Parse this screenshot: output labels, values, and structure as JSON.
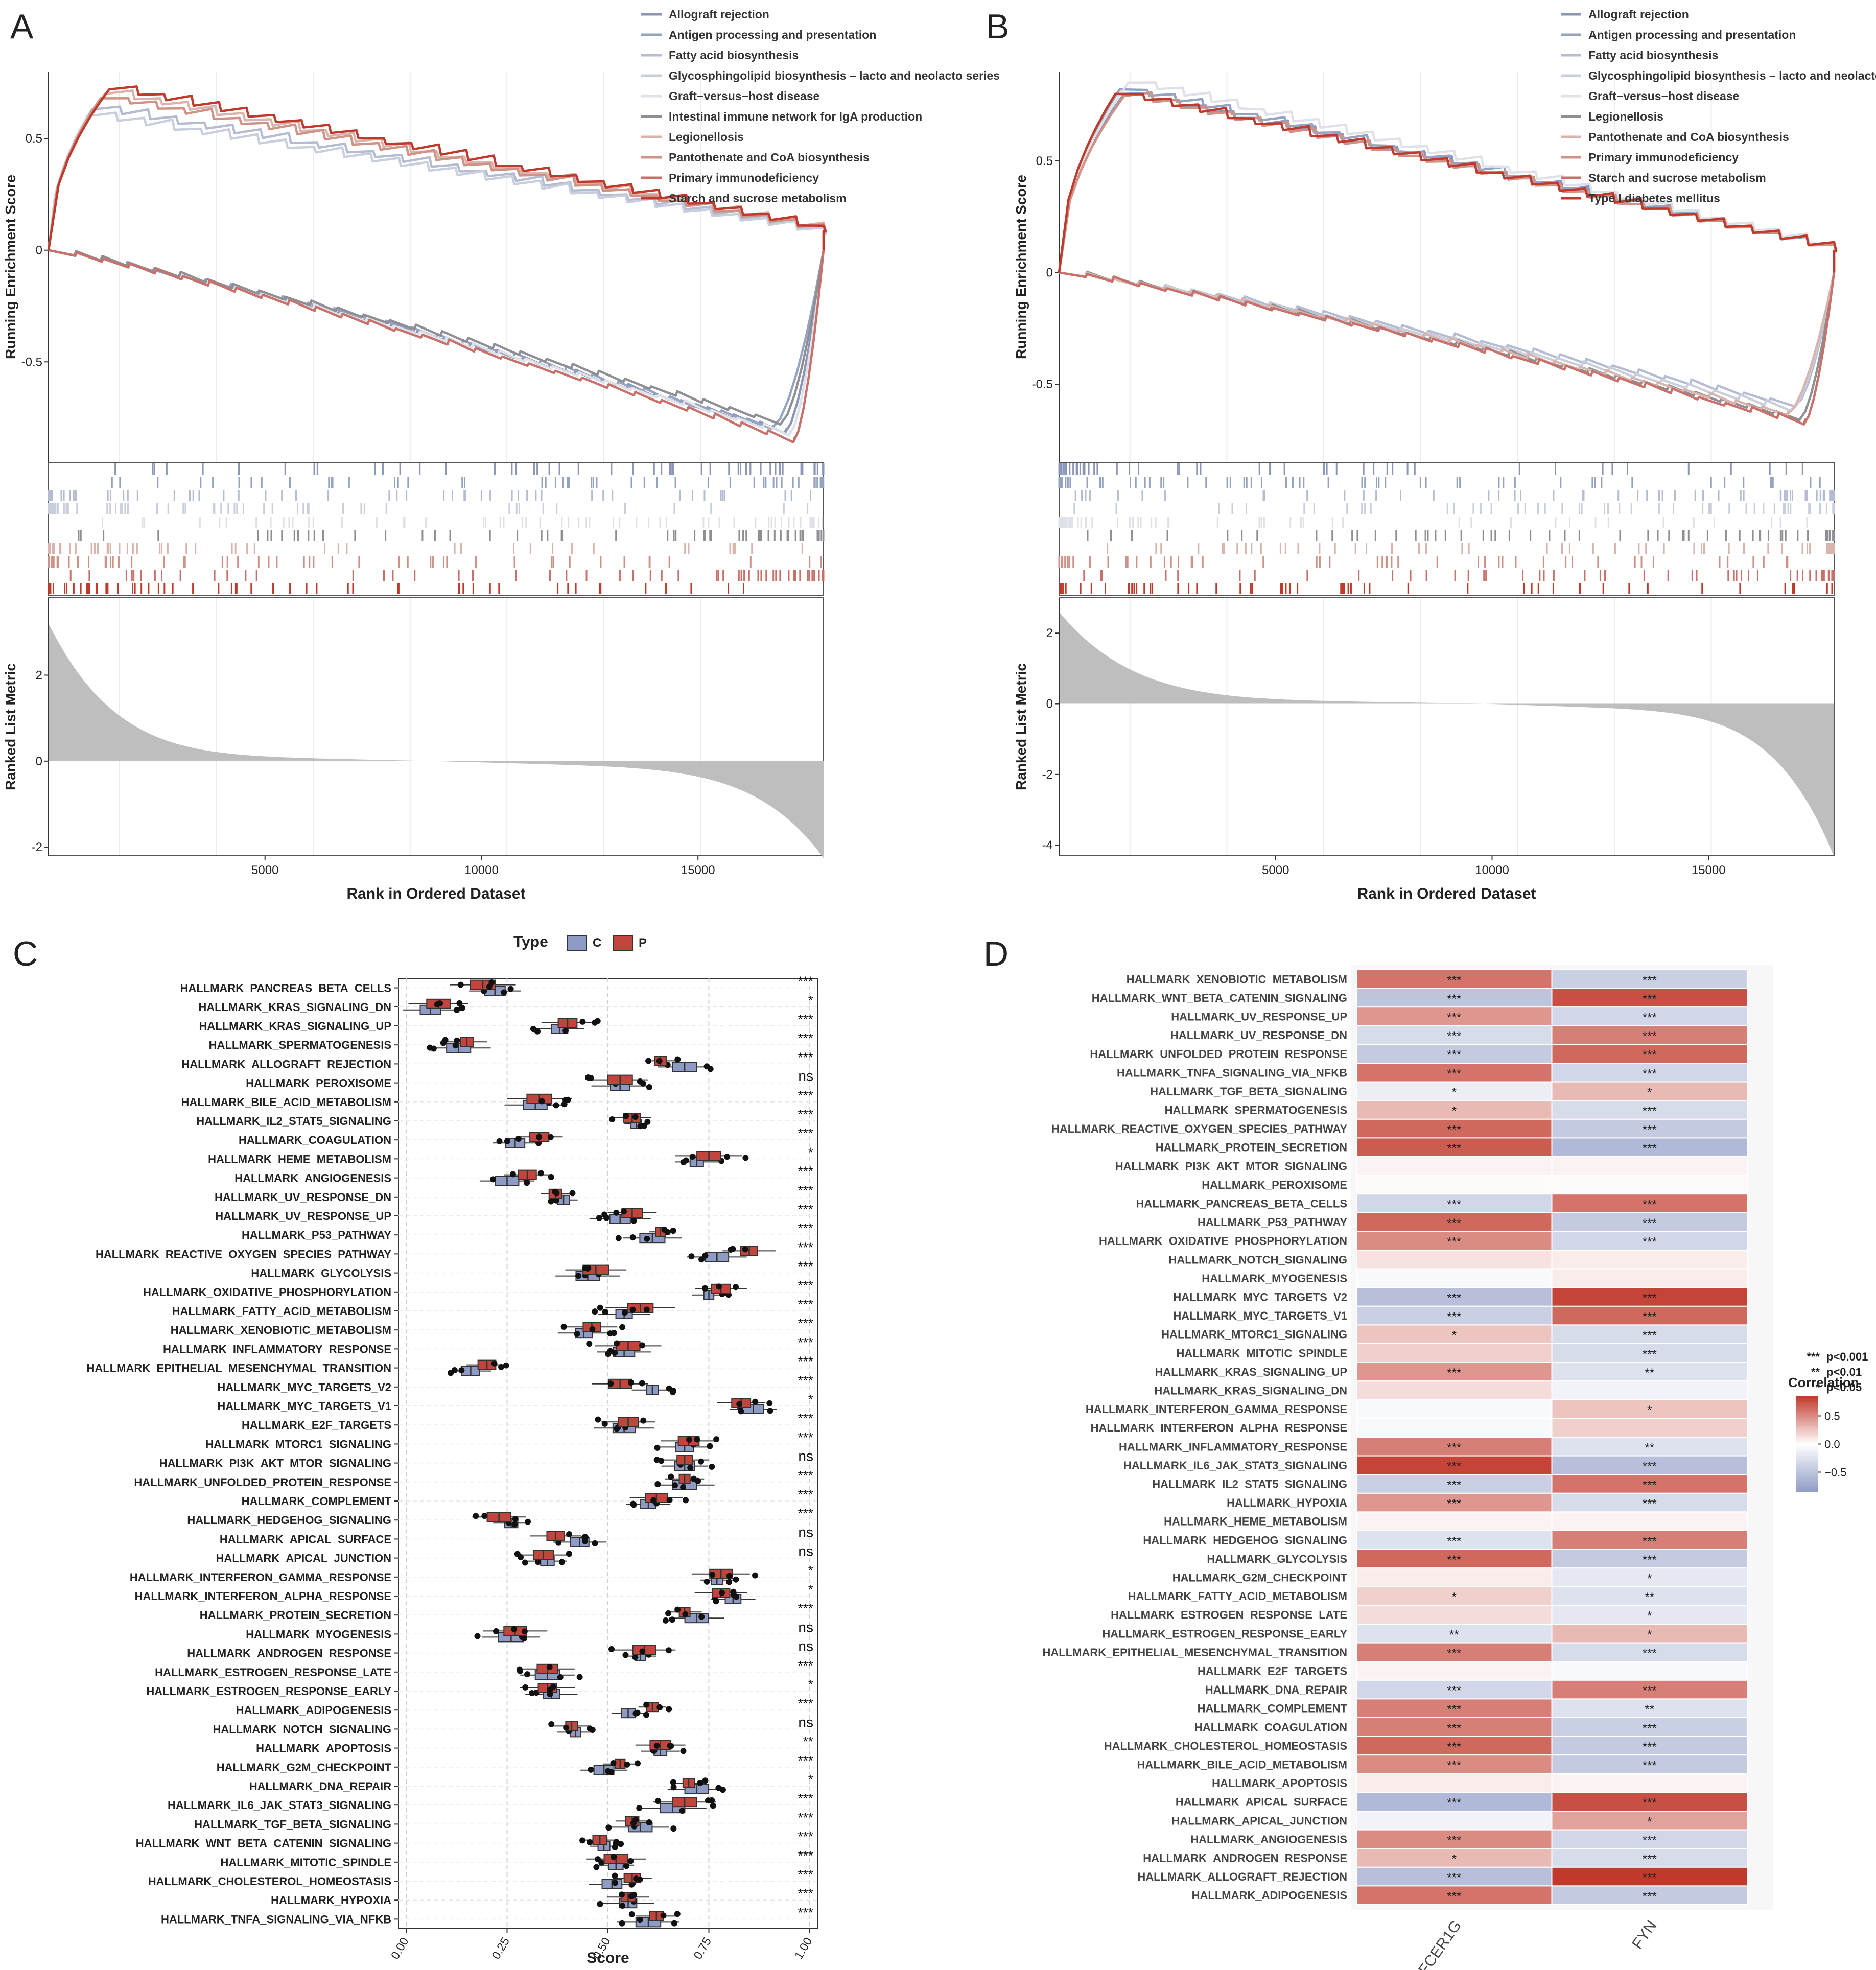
{
  "figure": {
    "panel_labels": [
      "A",
      "B",
      "C",
      "D"
    ],
    "colors": {
      "gsea_palette": [
        "#8a95b8",
        "#95a3c3",
        "#b3bcd2",
        "#c9cedd",
        "#dfe1e8",
        "#8e8e94",
        "#d9b4ac",
        "#cf9287",
        "#c9706a",
        "#c0392b"
      ],
      "box_C": "#8e9bc4",
      "box_P": "#c0463d",
      "heat_low": "#8f9cc6",
      "heat_mid": "#ffffff",
      "heat_high": "#c0392b",
      "hist_fill": "#bebebe"
    }
  },
  "chart_data": [
    {
      "panel": "A",
      "type": "line",
      "title": "",
      "ylabel_top": "Running Enrichment Score",
      "ylabel_bottom": "Ranked List Metric",
      "xlabel": "Rank in Ordered Dataset",
      "xlim": [
        0,
        17900
      ],
      "xticks": [
        5000,
        10000,
        15000
      ],
      "ylim_es": [
        -0.95,
        0.8
      ],
      "yticks_es": [
        0.5,
        0.0,
        -0.5
      ],
      "ylim_metric": [
        -2.2,
        3.8
      ],
      "yticks_metric": [
        2,
        0,
        -2
      ],
      "legend_position": "top-right",
      "metric_curve": {
        "start": 3.0,
        "end": -2.0,
        "zero_at": 0.5
      },
      "series": [
        {
          "name": "Allograft rejection",
          "direction": "down",
          "peak_x": 17000,
          "peak_es": -0.82
        },
        {
          "name": "Antigen processing and presentation",
          "direction": "down",
          "peak_x": 16700,
          "peak_es": -0.8
        },
        {
          "name": "Fatty acid biosynthesis",
          "direction": "up",
          "peak_x": 1000,
          "peak_es": 0.63
        },
        {
          "name": "Glycosphingolipid biosynthesis – lacto and neolacto series",
          "direction": "up",
          "peak_x": 900,
          "peak_es": 0.6
        },
        {
          "name": "Graft−versus−host disease",
          "direction": "down",
          "peak_x": 17100,
          "peak_es": -0.83
        },
        {
          "name": "Intestinal immune network for IgA production",
          "direction": "down",
          "peak_x": 16900,
          "peak_es": -0.78
        },
        {
          "name": "Legionellosis",
          "direction": "up",
          "peak_x": 1300,
          "peak_es": 0.7
        },
        {
          "name": "Pantothenate and CoA biosynthesis",
          "direction": "up",
          "peak_x": 1200,
          "peak_es": 0.68
        },
        {
          "name": "Primary immunodeficiency",
          "direction": "down",
          "peak_x": 17200,
          "peak_es": -0.86
        },
        {
          "name": "Starch and sucrose metabolism",
          "direction": "up",
          "peak_x": 1400,
          "peak_es": 0.72
        }
      ]
    },
    {
      "panel": "B",
      "type": "line",
      "title": "",
      "ylabel_top": "Running Enrichment Score",
      "ylabel_bottom": "Ranked List Metric",
      "xlabel": "Rank in Ordered Dataset",
      "xlim": [
        0,
        17900
      ],
      "xticks": [
        5000,
        10000,
        15000
      ],
      "ylim_es": [
        -0.85,
        0.9
      ],
      "yticks_es": [
        0.5,
        0.0,
        -0.5
      ],
      "ylim_metric": [
        -4.3,
        3.0
      ],
      "yticks_metric": [
        2,
        0,
        -2,
        -4
      ],
      "legend_position": "top-right",
      "metric_curve": {
        "start": 2.4,
        "end": -4.0,
        "zero_at": 0.55
      },
      "series": [
        {
          "name": "Allograft rejection",
          "direction": "up",
          "peak_x": 1500,
          "peak_es": 0.8
        },
        {
          "name": "Antigen processing and presentation",
          "direction": "up",
          "peak_x": 1400,
          "peak_es": 0.82
        },
        {
          "name": "Fatty acid biosynthesis",
          "direction": "down",
          "peak_x": 17000,
          "peak_es": -0.6
        },
        {
          "name": "Glycosphingolipid biosynthesis – lacto and neolacto series",
          "direction": "down",
          "peak_x": 16900,
          "peak_es": -0.62
        },
        {
          "name": "Graft−versus−host disease",
          "direction": "up",
          "peak_x": 1600,
          "peak_es": 0.85
        },
        {
          "name": "Legionellosis",
          "direction": "down",
          "peak_x": 17100,
          "peak_es": -0.66
        },
        {
          "name": "Pantothenate and CoA biosynthesis",
          "direction": "down",
          "peak_x": 16800,
          "peak_es": -0.64
        },
        {
          "name": "Primary immunodeficiency",
          "direction": "up",
          "peak_x": 1500,
          "peak_es": 0.79
        },
        {
          "name": "Starch and sucrose metabolism",
          "direction": "down",
          "peak_x": 17200,
          "peak_es": -0.68
        },
        {
          "name": "Type I diabetes mellitus",
          "direction": "up",
          "peak_x": 1300,
          "peak_es": 0.8
        }
      ]
    },
    {
      "panel": "C",
      "type": "box",
      "title": "",
      "legend_title": "Type",
      "legend_labels": [
        "C",
        "P"
      ],
      "legend_position": "top",
      "xlabel": "Score",
      "xlim": [
        0,
        1
      ],
      "xticks": [
        "0.00",
        "0.25",
        "0.50",
        "0.75",
        "1.00"
      ],
      "categories": [
        "HALLMARK_PANCREAS_BETA_CELLS",
        "HALLMARK_KRAS_SIGNALING_DN",
        "HALLMARK_KRAS_SIGNALING_UP",
        "HALLMARK_SPERMATOGENESIS",
        "HALLMARK_ALLOGRAFT_REJECTION",
        "HALLMARK_PEROXISOME",
        "HALLMARK_BILE_ACID_METABOLISM",
        "HALLMARK_IL2_STAT5_SIGNALING",
        "HALLMARK_COAGULATION",
        "HALLMARK_HEME_METABOLISM",
        "HALLMARK_ANGIOGENESIS",
        "HALLMARK_UV_RESPONSE_DN",
        "HALLMARK_UV_RESPONSE_UP",
        "HALLMARK_P53_PATHWAY",
        "HALLMARK_REACTIVE_OXYGEN_SPECIES_PATHWAY",
        "HALLMARK_GLYCOLYSIS",
        "HALLMARK_OXIDATIVE_PHOSPHORYLATION",
        "HALLMARK_FATTY_ACID_METABOLISM",
        "HALLMARK_XENOBIOTIC_METABOLISM",
        "HALLMARK_INFLAMMATORY_RESPONSE",
        "HALLMARK_EPITHELIAL_MESENCHYMAL_TRANSITION",
        "HALLMARK_MYC_TARGETS_V2",
        "HALLMARK_MYC_TARGETS_V1",
        "HALLMARK_E2F_TARGETS",
        "HALLMARK_MTORC1_SIGNALING",
        "HALLMARK_PI3K_AKT_MTOR_SIGNALING",
        "HALLMARK_UNFOLDED_PROTEIN_RESPONSE",
        "HALLMARK_COMPLEMENT",
        "HALLMARK_HEDGEHOG_SIGNALING",
        "HALLMARK_APICAL_SURFACE",
        "HALLMARK_APICAL_JUNCTION",
        "HALLMARK_INTERFERON_GAMMA_RESPONSE",
        "HALLMARK_INTERFERON_ALPHA_RESPONSE",
        "HALLMARK_PROTEIN_SECRETION",
        "HALLMARK_MYOGENESIS",
        "HALLMARK_ANDROGEN_RESPONSE",
        "HALLMARK_ESTROGEN_RESPONSE_LATE",
        "HALLMARK_ESTROGEN_RESPONSE_EARLY",
        "HALLMARK_ADIPOGENESIS",
        "HALLMARK_NOTCH_SIGNALING",
        "HALLMARK_APOPTOSIS",
        "HALLMARK_G2M_CHECKPOINT",
        "HALLMARK_DNA_REPAIR",
        "HALLMARK_IL6_JAK_STAT3_SIGNALING",
        "HALLMARK_TGF_BETA_SIGNALING",
        "HALLMARK_WNT_BETA_CATENIN_SIGNALING",
        "HALLMARK_MITOTIC_SPINDLE",
        "HALLMARK_CHOLESTEROL_HOMEOSTASIS",
        "HALLMARK_HYPOXIA",
        "HALLMARK_TNFA_SIGNALING_VIA_NFKB"
      ],
      "series": [
        {
          "name": "C",
          "values": [
            0.22,
            0.06,
            0.38,
            0.13,
            0.69,
            0.53,
            0.32,
            0.57,
            0.27,
            0.72,
            0.25,
            0.39,
            0.53,
            0.61,
            0.77,
            0.45,
            0.75,
            0.54,
            0.44,
            0.54,
            0.16,
            0.61,
            0.86,
            0.54,
            0.69,
            0.69,
            0.69,
            0.6,
            0.26,
            0.43,
            0.35,
            0.77,
            0.81,
            0.72,
            0.26,
            0.58,
            0.35,
            0.36,
            0.55,
            0.42,
            0.63,
            0.49,
            0.72,
            0.66,
            0.58,
            0.49,
            0.52,
            0.51,
            0.55,
            0.6
          ]
        },
        {
          "name": "P",
          "values": [
            0.19,
            0.08,
            0.4,
            0.15,
            0.63,
            0.53,
            0.33,
            0.56,
            0.33,
            0.75,
            0.3,
            0.37,
            0.56,
            0.63,
            0.85,
            0.47,
            0.78,
            0.58,
            0.46,
            0.55,
            0.2,
            0.53,
            0.83,
            0.55,
            0.7,
            0.69,
            0.69,
            0.62,
            0.23,
            0.37,
            0.34,
            0.78,
            0.78,
            0.69,
            0.27,
            0.59,
            0.35,
            0.35,
            0.61,
            0.41,
            0.63,
            0.53,
            0.7,
            0.69,
            0.56,
            0.48,
            0.52,
            0.56,
            0.55,
            0.62
          ]
        }
      ],
      "significance": [
        "***",
        "*",
        "***",
        "***",
        "***",
        "ns",
        "***",
        "***",
        "***",
        "*",
        "***",
        "***",
        "***",
        "***",
        "***",
        "***",
        "***",
        "***",
        "***",
        "***",
        "***",
        "***",
        "*",
        "***",
        "***",
        "ns",
        "***",
        "***",
        "***",
        "ns",
        "ns",
        "*",
        "*",
        "***",
        "ns",
        "ns",
        "***",
        "*",
        "***",
        "ns",
        "**",
        "***",
        "*",
        "***",
        "***",
        "***",
        "***",
        "***",
        "***",
        "***"
      ]
    },
    {
      "panel": "D",
      "type": "heatmap",
      "title": "",
      "columns": [
        "FCER1G",
        "FYN"
      ],
      "rows": [
        "HALLMARK_XENOBIOTIC_METABOLISM",
        "HALLMARK_WNT_BETA_CATENIN_SIGNALING",
        "HALLMARK_UV_RESPONSE_UP",
        "HALLMARK_UV_RESPONSE_DN",
        "HALLMARK_UNFOLDED_PROTEIN_RESPONSE",
        "HALLMARK_TNFA_SIGNALING_VIA_NFKB",
        "HALLMARK_TGF_BETA_SIGNALING",
        "HALLMARK_SPERMATOGENESIS",
        "HALLMARK_REACTIVE_OXYGEN_SPECIES_PATHWAY",
        "HALLMARK_PROTEIN_SECRETION",
        "HALLMARK_PI3K_AKT_MTOR_SIGNALING",
        "HALLMARK_PEROXISOME",
        "HALLMARK_PANCREAS_BETA_CELLS",
        "HALLMARK_P53_PATHWAY",
        "HALLMARK_OXIDATIVE_PHOSPHORYLATION",
        "HALLMARK_NOTCH_SIGNALING",
        "HALLMARK_MYOGENESIS",
        "HALLMARK_MYC_TARGETS_V2",
        "HALLMARK_MYC_TARGETS_V1",
        "HALLMARK_MTORC1_SIGNALING",
        "HALLMARK_MITOTIC_SPINDLE",
        "HALLMARK_KRAS_SIGNALING_UP",
        "HALLMARK_KRAS_SIGNALING_DN",
        "HALLMARK_INTERFERON_GAMMA_RESPONSE",
        "HALLMARK_INTERFERON_ALPHA_RESPONSE",
        "HALLMARK_INFLAMMATORY_RESPONSE",
        "HALLMARK_IL6_JAK_STAT3_SIGNALING",
        "HALLMARK_IL2_STAT5_SIGNALING",
        "HALLMARK_HYPOXIA",
        "HALLMARK_HEME_METABOLISM",
        "HALLMARK_HEDGEHOG_SIGNALING",
        "HALLMARK_GLYCOLYSIS",
        "HALLMARK_G2M_CHECKPOINT",
        "HALLMARK_FATTY_ACID_METABOLISM",
        "HALLMARK_ESTROGEN_RESPONSE_LATE",
        "HALLMARK_ESTROGEN_RESPONSE_EARLY",
        "HALLMARK_EPITHELIAL_MESENCHYMAL_TRANSITION",
        "HALLMARK_E2F_TARGETS",
        "HALLMARK_DNA_REPAIR",
        "HALLMARK_COMPLEMENT",
        "HALLMARK_COAGULATION",
        "HALLMARK_CHOLESTEROL_HOMEOSTASIS",
        "HALLMARK_BILE_ACID_METABOLISM",
        "HALLMARK_APOPTOSIS",
        "HALLMARK_APICAL_SURFACE",
        "HALLMARK_APICAL_JUNCTION",
        "HALLMARK_ANGIOGENESIS",
        "HALLMARK_ANDROGEN_RESPONSE",
        "HALLMARK_ALLOGRAFT_REJECTION",
        "HALLMARK_ADIPOGENESIS"
      ],
      "values": [
        [
          0.6,
          -0.4
        ],
        [
          -0.5,
          0.75
        ],
        [
          0.45,
          -0.35
        ],
        [
          -0.3,
          0.55
        ],
        [
          -0.45,
          0.65
        ],
        [
          0.6,
          -0.35
        ],
        [
          -0.15,
          0.3
        ],
        [
          0.3,
          -0.3
        ],
        [
          0.65,
          -0.45
        ],
        [
          0.7,
          -0.6
        ],
        [
          0.05,
          0.05
        ],
        [
          0.02,
          0.02
        ],
        [
          -0.35,
          0.6
        ],
        [
          0.65,
          -0.45
        ],
        [
          0.5,
          -0.35
        ],
        [
          0.12,
          0.08
        ],
        [
          -0.05,
          0.08
        ],
        [
          -0.55,
          0.8
        ],
        [
          -0.4,
          0.65
        ],
        [
          0.25,
          -0.3
        ],
        [
          0.2,
          -0.3
        ],
        [
          0.45,
          -0.25
        ],
        [
          0.15,
          -0.1
        ],
        [
          -0.05,
          0.25
        ],
        [
          -0.05,
          0.2
        ],
        [
          0.55,
          -0.25
        ],
        [
          0.8,
          -0.55
        ],
        [
          -0.4,
          0.6
        ],
        [
          0.45,
          -0.3
        ],
        [
          0.05,
          0.05
        ],
        [
          -0.25,
          0.55
        ],
        [
          0.65,
          -0.45
        ],
        [
          0.08,
          -0.2
        ],
        [
          0.2,
          -0.25
        ],
        [
          0.15,
          -0.2
        ],
        [
          -0.25,
          0.3
        ],
        [
          0.55,
          -0.3
        ],
        [
          0.05,
          -0.05
        ],
        [
          -0.35,
          0.55
        ],
        [
          0.55,
          -0.25
        ],
        [
          0.55,
          -0.4
        ],
        [
          0.65,
          -0.45
        ],
        [
          0.5,
          -0.45
        ],
        [
          0.08,
          0.05
        ],
        [
          -0.6,
          0.75
        ],
        [
          -0.1,
          0.4
        ],
        [
          0.5,
          -0.35
        ],
        [
          0.3,
          -0.3
        ],
        [
          -0.55,
          0.85
        ],
        [
          0.6,
          -0.45
        ]
      ],
      "stars": [
        [
          "***",
          "***"
        ],
        [
          "***",
          "***"
        ],
        [
          "***",
          "***"
        ],
        [
          "***",
          "***"
        ],
        [
          "***",
          "***"
        ],
        [
          "***",
          "***"
        ],
        [
          "*",
          "*"
        ],
        [
          "*",
          "***"
        ],
        [
          "***",
          "***"
        ],
        [
          "***",
          "***"
        ],
        [
          "",
          ""
        ],
        [
          "",
          ""
        ],
        [
          "***",
          "***"
        ],
        [
          "***",
          "***"
        ],
        [
          "***",
          "***"
        ],
        [
          "",
          ""
        ],
        [
          "",
          ""
        ],
        [
          "***",
          "***"
        ],
        [
          "***",
          "***"
        ],
        [
          "*",
          "***"
        ],
        [
          "",
          "***"
        ],
        [
          "***",
          "**"
        ],
        [
          "",
          ""
        ],
        [
          "",
          "*"
        ],
        [
          "",
          ""
        ],
        [
          "***",
          "**"
        ],
        [
          "***",
          "***"
        ],
        [
          "***",
          "***"
        ],
        [
          "***",
          "***"
        ],
        [
          "",
          ""
        ],
        [
          "***",
          "***"
        ],
        [
          "***",
          "***"
        ],
        [
          "",
          "*"
        ],
        [
          "*",
          "**"
        ],
        [
          "",
          "*"
        ],
        [
          "**",
          "*"
        ],
        [
          "***",
          "***"
        ],
        [
          "",
          ""
        ],
        [
          "***",
          "***"
        ],
        [
          "***",
          "**"
        ],
        [
          "***",
          "***"
        ],
        [
          "***",
          "***"
        ],
        [
          "***",
          "***"
        ],
        [
          "",
          ""
        ],
        [
          "***",
          "***"
        ],
        [
          "",
          "*"
        ],
        [
          "***",
          "***"
        ],
        [
          "*",
          "***"
        ],
        [
          "***",
          "***"
        ],
        [
          "***",
          "***"
        ]
      ],
      "legend_title": "Correlation",
      "legend_ticks": [
        "0.5",
        "0.0",
        "−0.5"
      ],
      "legend_range": [
        -0.85,
        0.85
      ],
      "legend_position": "right",
      "pvalue_key": [
        {
          "mark": "***",
          "text": "p<0.001"
        },
        {
          "mark": "**",
          "text": "p<0.01"
        },
        {
          "mark": "*",
          "text": "p<0.05"
        }
      ]
    }
  ]
}
